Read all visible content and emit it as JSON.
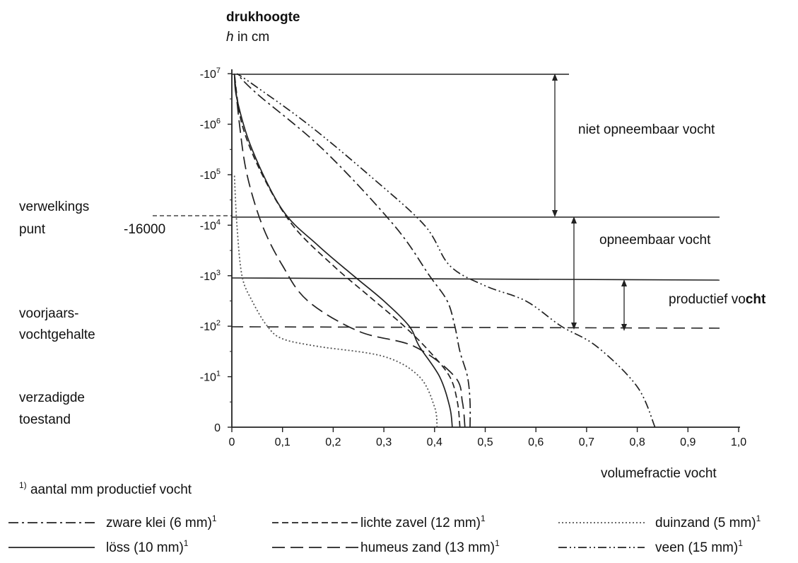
{
  "chart_data": {
    "type": "line",
    "ylabel_line1": "drukhoogte",
    "ylabel_italic": "h",
    "ylabel_rest": " in cm",
    "xlabel": "volumefractie vocht",
    "footnote_sup": "1)",
    "footnote": " aantal mm productief vocht",
    "x_ticks": [
      "0",
      "0,1",
      "0,2",
      "0,3",
      "0,4",
      "0,5",
      "0,6",
      "0,7",
      "0,8",
      "0,9",
      "1,0"
    ],
    "xlim": [
      0,
      1
    ],
    "y_ticks": [
      {
        "base": "-10",
        "exp": "7",
        "log": 7
      },
      {
        "base": "-10",
        "exp": "6",
        "log": 6
      },
      {
        "base": "-10",
        "exp": "5",
        "log": 5
      },
      {
        "base": "-10",
        "exp": "4",
        "log": 4
      },
      {
        "base": "-10",
        "exp": "3",
        "log": 3
      },
      {
        "base": "-10",
        "exp": "2",
        "log": 2
      },
      {
        "base": "-10",
        "exp": "1",
        "log": 1
      },
      {
        "base": "0",
        "exp": "",
        "log": 0
      }
    ],
    "y_scale": "pF (log10 of -h), 0 at bottom to 7 at top",
    "side_labels": [
      {
        "lines": [
          "verwelkings",
          "punt"
        ],
        "log": 4.2
      },
      {
        "lines": [
          "voorjaars-",
          "vochtgehalte"
        ],
        "log": 2
      },
      {
        "lines": [
          "verzadigde",
          "toestand"
        ],
        "log": 0.5
      }
    ],
    "wilting_value": "-16000",
    "zones": [
      {
        "label": "niet opneembaar vocht"
      },
      {
        "label": "opneembaar vocht"
      },
      {
        "label_a": "productief vo",
        "label_b": "cht"
      }
    ],
    "series": [
      {
        "name": "zware klei (6 mm)",
        "sup": "1",
        "style": "dash-dot",
        "points": [
          [
            0.47,
            0
          ],
          [
            0.47,
            0.5
          ],
          [
            0.465,
            1
          ],
          [
            0.45,
            1.5
          ],
          [
            0.44,
            2
          ],
          [
            0.425,
            2.5
          ],
          [
            0.39,
            3
          ],
          [
            0.32,
            4
          ],
          [
            0.18,
            5.5
          ],
          [
            0.05,
            6.6
          ],
          [
            0.01,
            7
          ]
        ]
      },
      {
        "name": "lichte zavel (12 mm)",
        "sup": "1",
        "style": "dashed",
        "points": [
          [
            0.45,
            0
          ],
          [
            0.445,
            0.5
          ],
          [
            0.43,
            1
          ],
          [
            0.39,
            1.5
          ],
          [
            0.34,
            2
          ],
          [
            0.27,
            2.6
          ],
          [
            0.2,
            3.2
          ],
          [
            0.12,
            4
          ],
          [
            0.06,
            5
          ],
          [
            0.02,
            6
          ],
          [
            0.005,
            7
          ]
        ]
      },
      {
        "name": "duinzand (5 mm)",
        "sup": "1",
        "style": "dotted",
        "points": [
          [
            0.405,
            0
          ],
          [
            0.4,
            0.4
          ],
          [
            0.37,
            1
          ],
          [
            0.3,
            1.4
          ],
          [
            0.17,
            1.6
          ],
          [
            0.1,
            1.75
          ],
          [
            0.07,
            2
          ],
          [
            0.04,
            2.5
          ],
          [
            0.02,
            3
          ],
          [
            0.01,
            4
          ],
          [
            0.005,
            5
          ]
        ]
      },
      {
        "name": "löss (10 mm)",
        "sup": "1",
        "style": "solid",
        "points": [
          [
            0.435,
            0
          ],
          [
            0.43,
            0.4
          ],
          [
            0.41,
            1
          ],
          [
            0.37,
            1.6
          ],
          [
            0.35,
            2
          ],
          [
            0.3,
            2.5
          ],
          [
            0.24,
            3
          ],
          [
            0.17,
            3.6
          ],
          [
            0.1,
            4.3
          ],
          [
            0.04,
            5.5
          ],
          [
            0.01,
            6.5
          ],
          [
            0.005,
            7
          ]
        ]
      },
      {
        "name": "humeus zand (13 mm)",
        "sup": "1",
        "style": "long-dash",
        "points": [
          [
            0.46,
            0
          ],
          [
            0.455,
            0.5
          ],
          [
            0.44,
            1
          ],
          [
            0.36,
            1.6
          ],
          [
            0.25,
            1.9
          ],
          [
            0.15,
            2.5
          ],
          [
            0.1,
            3.2
          ],
          [
            0.06,
            4
          ],
          [
            0.03,
            5
          ],
          [
            0.015,
            6
          ],
          [
            0.005,
            7
          ]
        ]
      },
      {
        "name": "veen (15 mm)",
        "sup": "1",
        "style": "dash-dot-dot",
        "points": [
          [
            0.835,
            0
          ],
          [
            0.8,
            0.8
          ],
          [
            0.72,
            1.6
          ],
          [
            0.65,
            2
          ],
          [
            0.58,
            2.5
          ],
          [
            0.5,
            2.8
          ],
          [
            0.43,
            3.2
          ],
          [
            0.38,
            4
          ],
          [
            0.27,
            5
          ],
          [
            0.15,
            6
          ],
          [
            0.04,
            6.8
          ],
          [
            0.01,
            7
          ]
        ]
      }
    ]
  }
}
